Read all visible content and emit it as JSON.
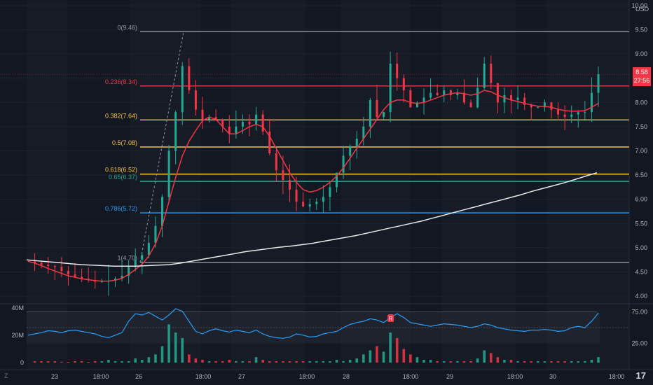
{
  "currency": "USD",
  "current_price": "8.58",
  "countdown": "27:56",
  "tv_logo": "17",
  "zoom_label": "Z",
  "chart_data": {
    "type": "candlestick",
    "price_axis": {
      "ticks": [
        "10.00",
        "9.50",
        "9.00",
        "8.50",
        "8.00",
        "7.50",
        "7.00",
        "6.50",
        "6.00",
        "5.50",
        "5.00",
        "4.50",
        "4.00"
      ],
      "ylim": [
        3.9,
        10.0
      ]
    },
    "time_axis": {
      "ticks": [
        "23",
        "18:00",
        "26",
        "18:00",
        "27",
        "18:00",
        "28",
        "18:00",
        "29",
        "18:00",
        "30",
        "18:00"
      ]
    },
    "fib_levels": [
      {
        "label": "0(9.46)",
        "ratio": 0,
        "price": 9.46,
        "color": "#9598a1"
      },
      {
        "label": "0.236(8.34)",
        "ratio": 0.236,
        "price": 8.34,
        "color": "#f23645"
      },
      {
        "label": "0.382(7.64)",
        "ratio": 0.382,
        "price": 7.64,
        "color": "#f5c242"
      },
      {
        "label": "0.5(7.08)",
        "ratio": 0.5,
        "price": 7.08,
        "color": "#f5c242"
      },
      {
        "label": "0.618(6.52)",
        "ratio": 0.618,
        "price": 6.52,
        "color": "#f5c242"
      },
      {
        "label": "0.65(6.37)",
        "ratio": 0.65,
        "price": 6.37,
        "color": "#22ab94"
      },
      {
        "label": "0.786(5.72)",
        "ratio": 0.786,
        "price": 5.72,
        "color": "#2a9df4"
      },
      {
        "label": "1(4.70)",
        "ratio": 1,
        "price": 4.7,
        "color": "#9598a1"
      }
    ],
    "price_series": [
      4.72,
      4.69,
      4.65,
      4.62,
      4.6,
      4.52,
      4.45,
      4.4,
      4.36,
      4.33,
      4.3,
      4.3,
      4.32,
      4.36,
      4.42,
      4.6,
      4.75,
      4.85,
      5.1,
      5.45,
      6.05,
      7.0,
      7.8,
      8.75,
      8.25,
      7.85,
      7.65,
      7.7,
      7.65,
      7.5,
      7.35,
      7.5,
      7.6,
      7.55,
      7.75,
      7.4,
      6.95,
      6.6,
      6.4,
      6.2,
      5.95,
      5.85,
      5.9,
      5.95,
      6.05,
      6.25,
      6.55,
      6.9,
      7.1,
      7.25,
      7.5,
      8.05,
      7.7,
      7.8,
      8.8,
      8.5,
      8.25,
      7.9,
      8.0,
      8.1,
      8.2,
      8.15,
      8.25,
      8.15,
      8.2,
      8.0,
      7.9,
      8.3,
      8.8,
      8.4,
      8.0,
      8.15,
      8.05,
      8.1,
      7.95,
      7.9,
      7.9,
      8.0,
      7.85,
      7.75,
      7.7,
      7.75,
      7.8,
      7.8,
      8.2,
      8.58
    ],
    "ema_fast": [
      4.72,
      4.68,
      4.63,
      4.57,
      4.52,
      4.47,
      4.42,
      4.39,
      4.36,
      4.34,
      4.32,
      4.31,
      4.31,
      4.33,
      4.37,
      4.45,
      4.55,
      4.66,
      4.83,
      5.08,
      5.45,
      5.95,
      6.45,
      6.9,
      7.2,
      7.42,
      7.62,
      7.7,
      7.65,
      7.5,
      7.35,
      7.35,
      7.42,
      7.5,
      7.55,
      7.5,
      7.3,
      7.05,
      6.8,
      6.55,
      6.35,
      6.2,
      6.15,
      6.18,
      6.25,
      6.35,
      6.48,
      6.65,
      6.85,
      7.05,
      7.25,
      7.45,
      7.65,
      7.85,
      8.0,
      8.05,
      8.05,
      8.0,
      7.98,
      8.0,
      8.05,
      8.1,
      8.15,
      8.18,
      8.2,
      8.18,
      8.15,
      8.18,
      8.25,
      8.22,
      8.15,
      8.1,
      8.05,
      8.02,
      7.98,
      7.95,
      7.92,
      7.92,
      7.9,
      7.86,
      7.83,
      7.82,
      7.82,
      7.83,
      7.9,
      7.98
    ],
    "ema_slow": [
      4.75,
      4.73,
      4.71,
      4.69,
      4.67,
      4.65,
      4.64,
      4.63,
      4.62,
      4.62,
      4.62,
      4.63,
      4.64,
      4.65,
      4.68,
      4.72,
      4.76,
      4.8,
      4.84,
      4.88,
      4.92,
      4.95,
      4.98,
      5.01,
      5.03,
      5.06,
      5.09,
      5.13,
      5.17,
      5.21,
      5.25,
      5.3,
      5.35,
      5.4,
      5.45,
      5.5,
      5.55,
      5.61,
      5.67,
      5.73,
      5.79,
      5.85,
      5.91,
      5.97,
      6.03,
      6.09,
      6.16,
      6.22,
      6.28,
      6.34,
      6.41,
      6.48,
      6.55
    ],
    "volume": [
      2,
      1,
      1,
      1,
      1,
      0.5,
      0.5,
      1,
      1,
      0.5,
      1,
      1,
      2,
      1,
      1,
      1,
      3,
      2,
      4,
      6,
      12,
      28,
      22,
      18,
      6,
      3,
      2,
      1,
      1,
      1,
      2,
      1,
      1,
      1,
      4,
      2,
      1,
      1,
      1,
      1,
      1,
      1,
      1,
      1,
      1,
      1,
      2,
      1,
      2,
      3,
      6,
      9,
      12,
      8,
      22,
      18,
      10,
      6,
      4,
      2,
      2,
      1,
      1,
      1,
      1,
      1,
      1,
      3,
      9,
      7,
      4,
      2,
      2,
      1,
      1,
      1,
      1,
      1,
      1,
      1,
      1,
      1,
      1,
      1,
      2,
      4
    ],
    "volume_axis": {
      "ticks": [
        "40M",
        "20M",
        "0"
      ]
    },
    "oscillator_axis": {
      "ticks": [
        "75.00",
        "25.00"
      ]
    },
    "oscillator": [
      38,
      40,
      42,
      45,
      44,
      42,
      45,
      46,
      44,
      42,
      40,
      36,
      34,
      38,
      42,
      60,
      72,
      70,
      74,
      68,
      62,
      70,
      80,
      76,
      60,
      44,
      40,
      45,
      48,
      45,
      43,
      46,
      44,
      42,
      46,
      40,
      36,
      34,
      33,
      35,
      40,
      38,
      35,
      36,
      40,
      42,
      44,
      50,
      55,
      58,
      60,
      64,
      62,
      58,
      66,
      72,
      66,
      58,
      56,
      54,
      52,
      54,
      56,
      55,
      54,
      52,
      50,
      52,
      56,
      54,
      50,
      48,
      46,
      45,
      44,
      46,
      46,
      47,
      46,
      44,
      45,
      50,
      52,
      50,
      60,
      73
    ],
    "markers": [
      {
        "label": "R"
      }
    ]
  }
}
